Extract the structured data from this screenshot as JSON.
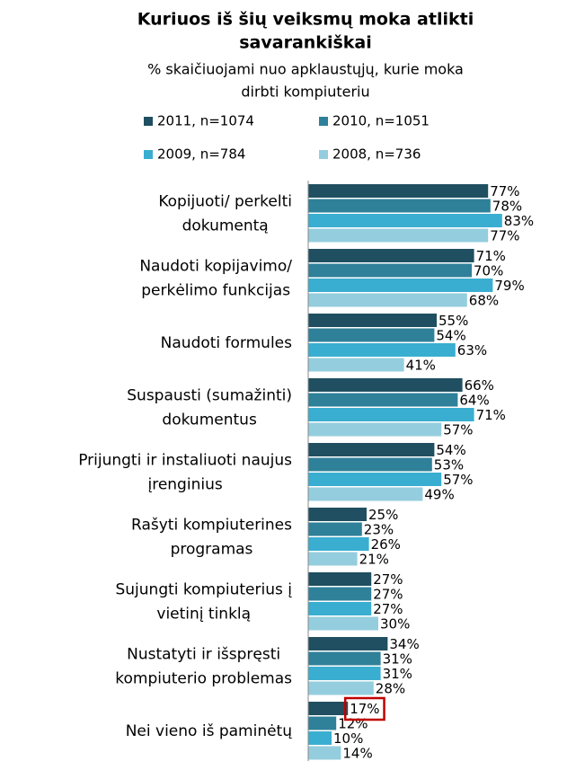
{
  "chart_data": {
    "type": "bar",
    "orientation": "horizontal",
    "title": [
      "Kuriuos iš šių veiksmų moka atlikti",
      "savarankiškai"
    ],
    "subtitle": [
      "% skaičiuojami nuo apklaustųjų, kurie moka",
      "dirbti kompiuteriu"
    ],
    "categories": [
      [
        "Kopijuoti/ perkelti",
        "dokumentą"
      ],
      [
        "Naudoti kopijavimo/",
        "perkėlimo funkcijas"
      ],
      [
        "Naudoti formules"
      ],
      [
        "Suspausti (sumažinti)",
        "dokumentus"
      ],
      [
        "Prijungti ir instaliuoti naujus",
        "įrenginius"
      ],
      [
        "Rašyti kompiuterines",
        "programas"
      ],
      [
        "Sujungti kompiuterius į",
        "vietinį tinklą"
      ],
      [
        "Nustatyti ir išspręsti",
        "kompiuterio problemas"
      ],
      [
        "Nei vieno iš paminėtų"
      ]
    ],
    "series": [
      {
        "name": "2011, n=1074",
        "color": "#1f4f60",
        "values": [
          77,
          71,
          55,
          66,
          54,
          25,
          27,
          34,
          17
        ],
        "value_labels": [
          "77%",
          "71%",
          "55%",
          "66%",
          "54%",
          "25%",
          "27%",
          "34%",
          "17%"
        ]
      },
      {
        "name": "2010, n=1051",
        "color": "#2f8099",
        "values": [
          78,
          70,
          54,
          64,
          53,
          23,
          27,
          31,
          12
        ],
        "value_labels": [
          "78%",
          "70%",
          "54%",
          "64%",
          "53%",
          "23%",
          "27%",
          "31%",
          "12%"
        ]
      },
      {
        "name": "2009, n=784",
        "color": "#3aaed0",
        "values": [
          83,
          79,
          63,
          71,
          57,
          26,
          27,
          31,
          10
        ],
        "value_labels": [
          "83%",
          "79%",
          "63%",
          "71%",
          "57%",
          "26%",
          "27%",
          "31%",
          "10%"
        ]
      },
      {
        "name": "2008, n=736",
        "color": "#94cede",
        "values": [
          77,
          68,
          41,
          57,
          49,
          21,
          30,
          28,
          14
        ],
        "value_labels": [
          "77%",
          "68%",
          "41%",
          "57%",
          "49%",
          "21%",
          "30%",
          "28%",
          "14%"
        ]
      }
    ],
    "highlight": {
      "series": 0,
      "index": 8,
      "color": "#c00000"
    }
  }
}
